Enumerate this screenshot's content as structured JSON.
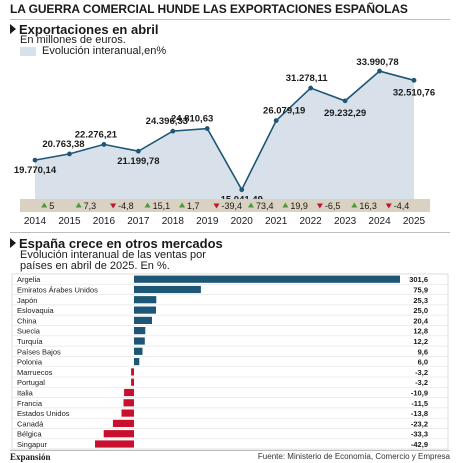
{
  "headline": "LA GUERRA COMERCIAL HUNDE LAS EXPORTACIONES ESPAÑOLAS",
  "colors": {
    "area": "#d8e1ea",
    "line": "#1e5776",
    "band": "#d9d2c3",
    "positive": "#4c9a3a",
    "negative": "#c8102e",
    "bar_pos": "#1e5776",
    "bar_neg": "#c8102e"
  },
  "chart_data": [
    {
      "type": "line",
      "title": "Exportaciones en abril",
      "subtitle": "En millones de euros.",
      "legend_label": "Evolución interanual,en%",
      "x": [
        "2014",
        "2015",
        "2016",
        "2017",
        "2018",
        "2019",
        "2020",
        "2021",
        "2022",
        "2023",
        "2024",
        "2025"
      ],
      "values": [
        19770.14,
        20763.38,
        22276.21,
        21199.78,
        24396.33,
        24810.63,
        15041.49,
        26079.19,
        31278.11,
        29232.29,
        33990.78,
        32510.76
      ],
      "value_labels": [
        "19.770,14",
        "20.763,38",
        "22.276,21",
        "21.199,78",
        "24.396,33",
        "24.810,63",
        "15.041,49",
        "26.079,19",
        "31.278,11",
        "29.232,29",
        "33.990,78",
        "32.510,76"
      ],
      "yoy_change_labels": [
        "5",
        "7,3",
        "-4,8",
        "15,1",
        "1,7",
        "-39,4",
        "73,4",
        "19,9",
        "-6,5",
        "16,3",
        "-4,4"
      ],
      "yoy_direction": [
        "up",
        "up",
        "down",
        "up",
        "up",
        "down",
        "up",
        "up",
        "down",
        "up",
        "down"
      ]
    },
    {
      "type": "bar",
      "title": "España crece en otros mercados",
      "subtitle_line1": "Evolución interanual de las ventas por",
      "subtitle_line2": "países en abril de 2025. En %.",
      "categories": [
        "Argelia",
        "Emiratos Árabes Unidos",
        "Japón",
        "Eslovaquia",
        "China",
        "Suecia",
        "Turquía",
        "Países Bajos",
        "Polonia",
        "Marruecos",
        "Portugal",
        "Italia",
        "Francia",
        "Estados Unidos",
        "Canadá",
        "Bélgica",
        "Singapur"
      ],
      "values": [
        301.6,
        75.9,
        25.3,
        25.0,
        20.4,
        12.8,
        12.2,
        9.6,
        6.0,
        -3.2,
        -3.2,
        -10.9,
        -11.5,
        -13.8,
        -23.2,
        -33.3,
        -42.9
      ],
      "value_labels": [
        "301,6",
        "75,9",
        "25,3",
        "25,0",
        "20,4",
        "12,8",
        "12,2",
        "9,6",
        "6,0",
        "-3,2",
        "-3,2",
        "-10,9",
        "-11,5",
        "-13,8",
        "-23,2",
        "-33,3",
        "-42,9"
      ]
    }
  ],
  "footer": {
    "brand": "Expansión",
    "source": "Fuente: Ministerio de Economía, Comercio y Empresa"
  }
}
